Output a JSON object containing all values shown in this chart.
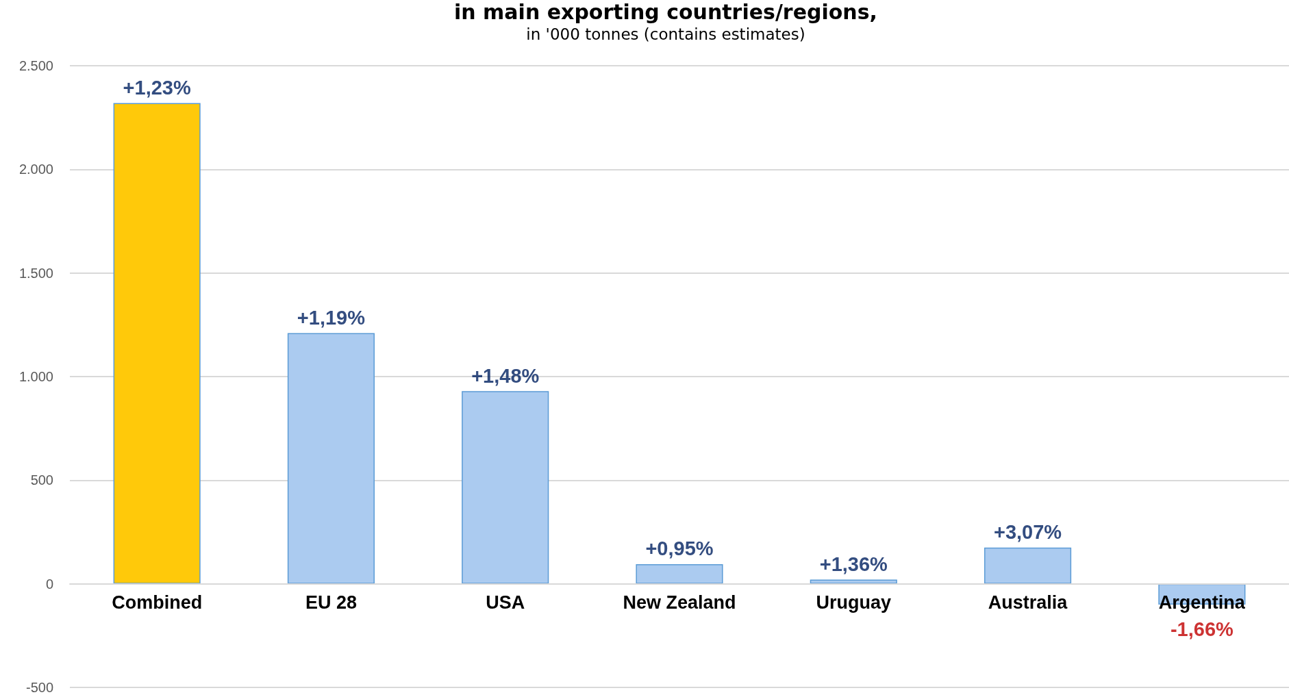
{
  "chart_data": {
    "type": "bar",
    "title": "in main exporting countries/regions,",
    "subtitle": "in '000 tonnes (contains estimates)",
    "categories": [
      "Combined",
      "EU 28",
      "USA",
      "New Zealand",
      "Uruguay",
      "Australia",
      "Argentina"
    ],
    "values": [
      2320,
      1210,
      930,
      95,
      20,
      175,
      -100
    ],
    "colors": [
      "#ffc90a",
      "#abcbf0",
      "#abcbf0",
      "#abcbf0",
      "#abcbf0",
      "#abcbf0",
      "#abcbf0"
    ],
    "annotations": [
      {
        "text": "+1,23%",
        "x": "Combined",
        "y": 2320
      },
      {
        "text": "+1,19%",
        "x": "EU 28",
        "y": 1210
      },
      {
        "text": "+1,48%",
        "x": "USA",
        "y": 930
      },
      {
        "text": "+0,95%",
        "x": "New Zealand",
        "y": 95
      },
      {
        "text": "+1,36%",
        "x": "Uruguay",
        "y": 20
      },
      {
        "text": "+3,07%",
        "x": "Australia",
        "y": 175
      },
      {
        "text": "-1,66%",
        "x": "Argentina",
        "y": -100
      }
    ],
    "ylim": [
      -500,
      2500
    ],
    "yticks": [
      -500,
      0,
      500,
      {
        "value": 1000,
        "label": "1.000"
      },
      {
        "value": 1500,
        "label": "1.500"
      },
      {
        "value": 2000,
        "label": "2.000"
      },
      {
        "value": 2500,
        "label": "2.500"
      }
    ],
    "grid": "y"
  }
}
